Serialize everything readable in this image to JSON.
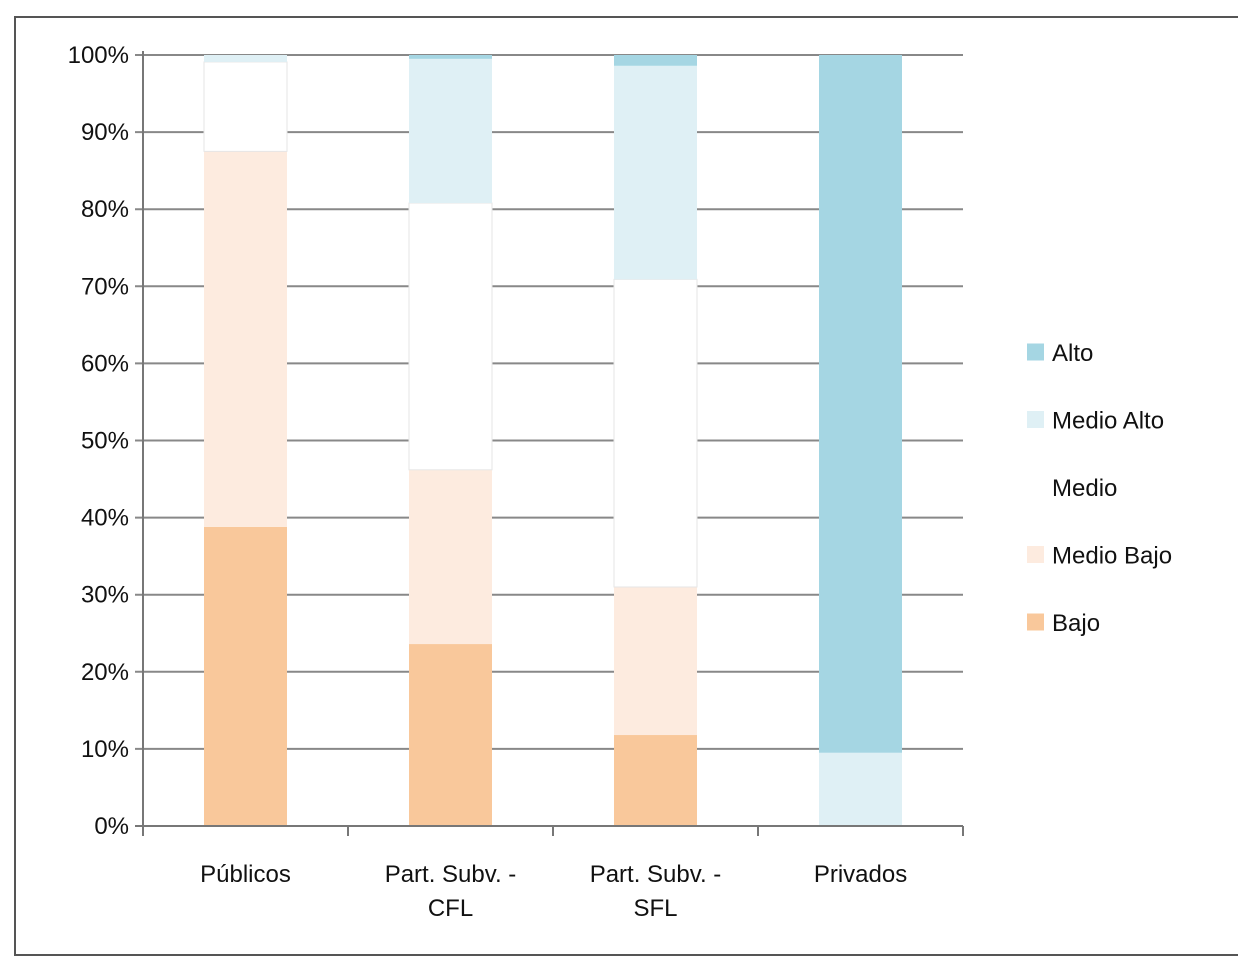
{
  "chart_data": {
    "type": "bar",
    "stacked": true,
    "percent": true,
    "title": "",
    "xlabel": "",
    "ylabel": "",
    "ylim": [
      0,
      100
    ],
    "yticks": [
      "0%",
      "10%",
      "20%",
      "30%",
      "40%",
      "50%",
      "60%",
      "70%",
      "80%",
      "90%",
      "100%"
    ],
    "categories": [
      "Públicos",
      "Part. Subv. - CFL",
      "Part. Subv. - SFL",
      "Privados"
    ],
    "category_lines": [
      [
        "Públicos"
      ],
      [
        "Part. Subv. -",
        "CFL"
      ],
      [
        "Part. Subv. -",
        "SFL"
      ],
      [
        "Privados"
      ]
    ],
    "series": [
      {
        "name": "Bajo",
        "color": "#F9C89B",
        "values": [
          38.8,
          23.6,
          11.8,
          0
        ]
      },
      {
        "name": "Medio Bajo",
        "color": "#FDEBDF",
        "values": [
          48.7,
          22.6,
          19.2,
          0
        ]
      },
      {
        "name": "Medio",
        "color": "#FFFFFF",
        "values": [
          11.6,
          34.6,
          39.9,
          0
        ]
      },
      {
        "name": "Medio Alto",
        "color": "#DFF0F5",
        "values": [
          0.9,
          18.7,
          27.7,
          9.5
        ]
      },
      {
        "name": "Alto",
        "color": "#A5D6E3",
        "values": [
          0.0,
          0.5,
          1.4,
          90.5
        ]
      }
    ],
    "legend_order": [
      "Alto",
      "Medio Alto",
      "Medio",
      "Medio Bajo",
      "Bajo"
    ],
    "legend_position": "right",
    "grid": true
  }
}
